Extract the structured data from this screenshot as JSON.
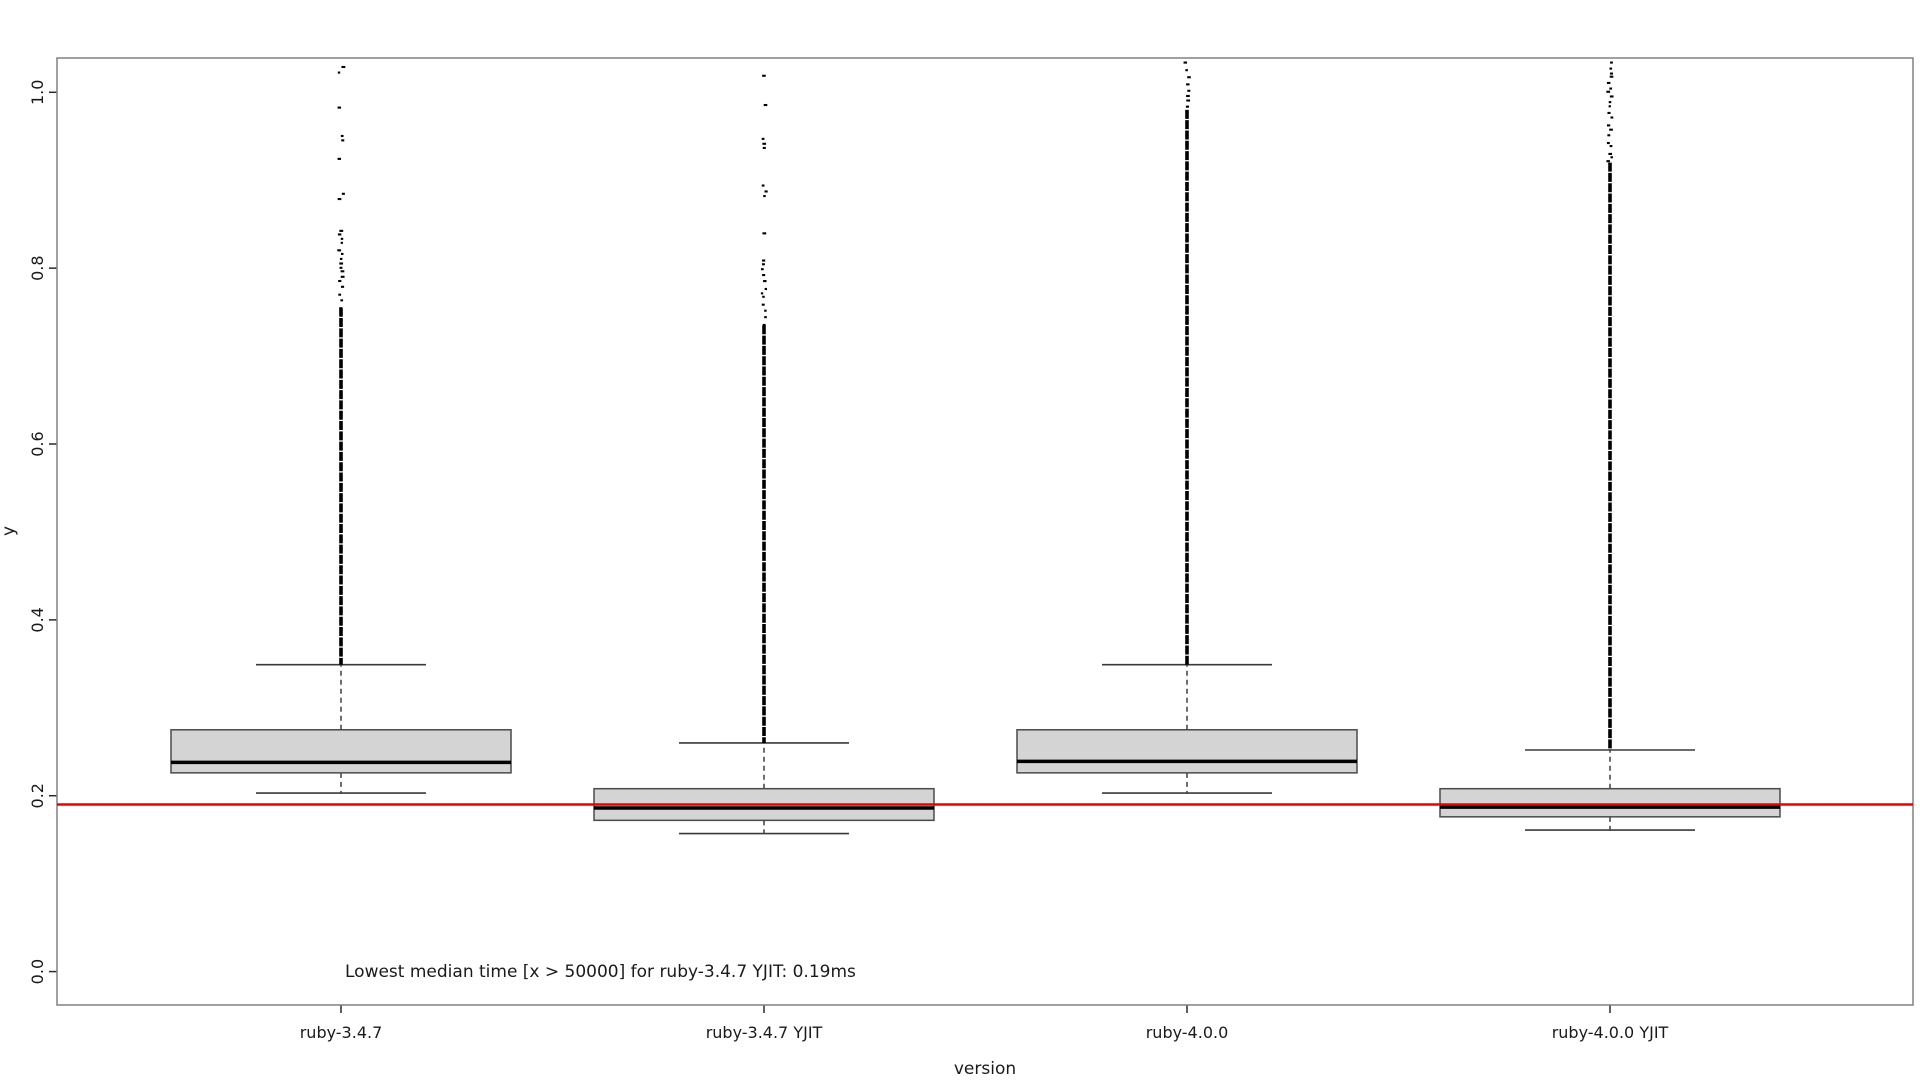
{
  "chart_data": {
    "type": "boxplot",
    "title": "",
    "xlabel": "version",
    "ylabel": "y",
    "annotation": "Lowest median time [x > 50000] for ruby-3.4.7 YJIT: 0.19ms",
    "categories": [
      "ruby-3.4.7",
      "ruby-3.4.7 YJIT",
      "ruby-4.0.0",
      "ruby-4.0.0 YJIT"
    ],
    "y_ticks": [
      {
        "value": 0.0,
        "label": "0.0"
      },
      {
        "value": 0.2,
        "label": "0.2"
      },
      {
        "value": 0.4,
        "label": "0.4"
      },
      {
        "value": 0.6,
        "label": "0.6"
      },
      {
        "value": 0.8,
        "label": "0.8"
      },
      {
        "value": 1.0,
        "label": "1.0"
      }
    ],
    "ylim": [
      -0.038,
      1.039
    ],
    "grid": false,
    "legend": "none",
    "boxes": [
      {
        "category": "ruby-3.4.7",
        "whisker_low": 0.203,
        "q1": 0.226,
        "median": 0.238,
        "q3": 0.275,
        "whisker_high": 0.349,
        "outlier_segments": [
          {
            "from": 0.349,
            "to": 0.755,
            "density": "solid"
          },
          {
            "from": 0.755,
            "to": 0.83,
            "density": "dense"
          },
          {
            "from": 0.83,
            "to": 1.03,
            "density": "sparse"
          }
        ]
      },
      {
        "category": "ruby-3.4.7 YJIT",
        "whisker_low": 0.157,
        "q1": 0.172,
        "median": 0.186,
        "q3": 0.208,
        "whisker_high": 0.26,
        "outlier_segments": [
          {
            "from": 0.26,
            "to": 0.735,
            "density": "solid"
          },
          {
            "from": 0.735,
            "to": 0.8,
            "density": "dense"
          },
          {
            "from": 0.8,
            "to": 1.02,
            "density": "sparse"
          }
        ]
      },
      {
        "category": "ruby-4.0.0",
        "whisker_low": 0.203,
        "q1": 0.226,
        "median": 0.239,
        "q3": 0.275,
        "whisker_high": 0.349,
        "outlier_segments": [
          {
            "from": 0.349,
            "to": 0.98,
            "density": "solid"
          },
          {
            "from": 0.98,
            "to": 1.035,
            "density": "dense"
          }
        ]
      },
      {
        "category": "ruby-4.0.0 YJIT",
        "whisker_low": 0.161,
        "q1": 0.176,
        "median": 0.187,
        "q3": 0.208,
        "whisker_high": 0.252,
        "outlier_segments": [
          {
            "from": 0.252,
            "to": 0.92,
            "density": "solid"
          },
          {
            "from": 0.92,
            "to": 1.035,
            "density": "dense"
          }
        ]
      }
    ],
    "reference_line": {
      "value": 0.19,
      "color": "#ee0000"
    }
  },
  "colors": {
    "box_fill": "#d4d4d4",
    "box_border": "#4a4a4a",
    "median": "#000000",
    "whisker": "#303030",
    "staple": "#3a3a3a",
    "frame": "#808080",
    "tick": "#2a2a2a",
    "outlier": "#000000",
    "reference": "#ee0000",
    "text": "#1a1a1a"
  }
}
